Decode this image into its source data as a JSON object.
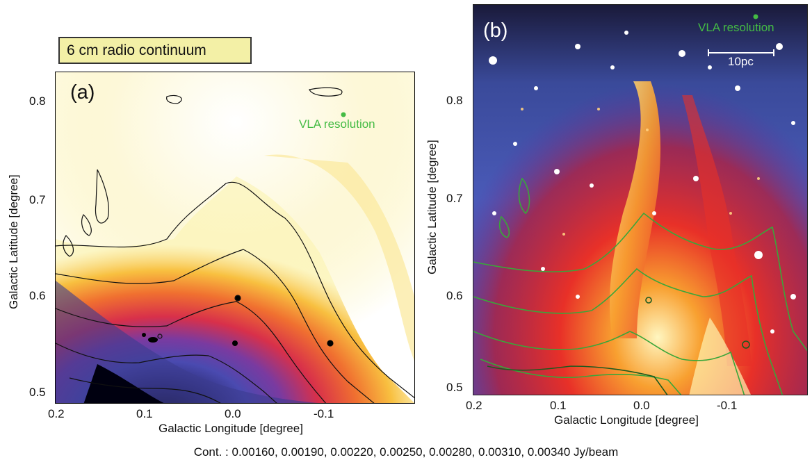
{
  "panel_a": {
    "map_title": "6 cm radio continuum",
    "panel_label": "(a)",
    "resolution_label": "VLA resolution",
    "x_axis_title": "Galactic Longitude [degree]",
    "y_axis_title": "Galactic Latitude [degree]",
    "x_ticks": [
      "0.2",
      "0.1",
      "0.0",
      "-0.1"
    ],
    "y_ticks": [
      "0.8",
      "0.7",
      "0.6",
      "0.5"
    ]
  },
  "panel_b": {
    "panel_label": "(b)",
    "resolution_label": "VLA resolution",
    "scale_bar_label": "10pc",
    "x_axis_title": "Galactic Longitude [degree]",
    "y_axis_title": "Galactic Latitude [degree]",
    "x_ticks": [
      "0.2",
      "0.1",
      "0.0",
      "-0.1"
    ],
    "y_ticks": [
      "0.8",
      "0.7",
      "0.6",
      "0.5"
    ]
  },
  "caption": "Cont. : 0.00160, 0.00190, 0.00220, 0.00250, 0.00280, 0.00310, 0.00340 Jy/beam",
  "colors": {
    "contour_a": "#111111",
    "contour_b": "#3aa63a",
    "resolution_dot": "#44bb44",
    "label_box_fill": "#f3f0a6"
  }
}
